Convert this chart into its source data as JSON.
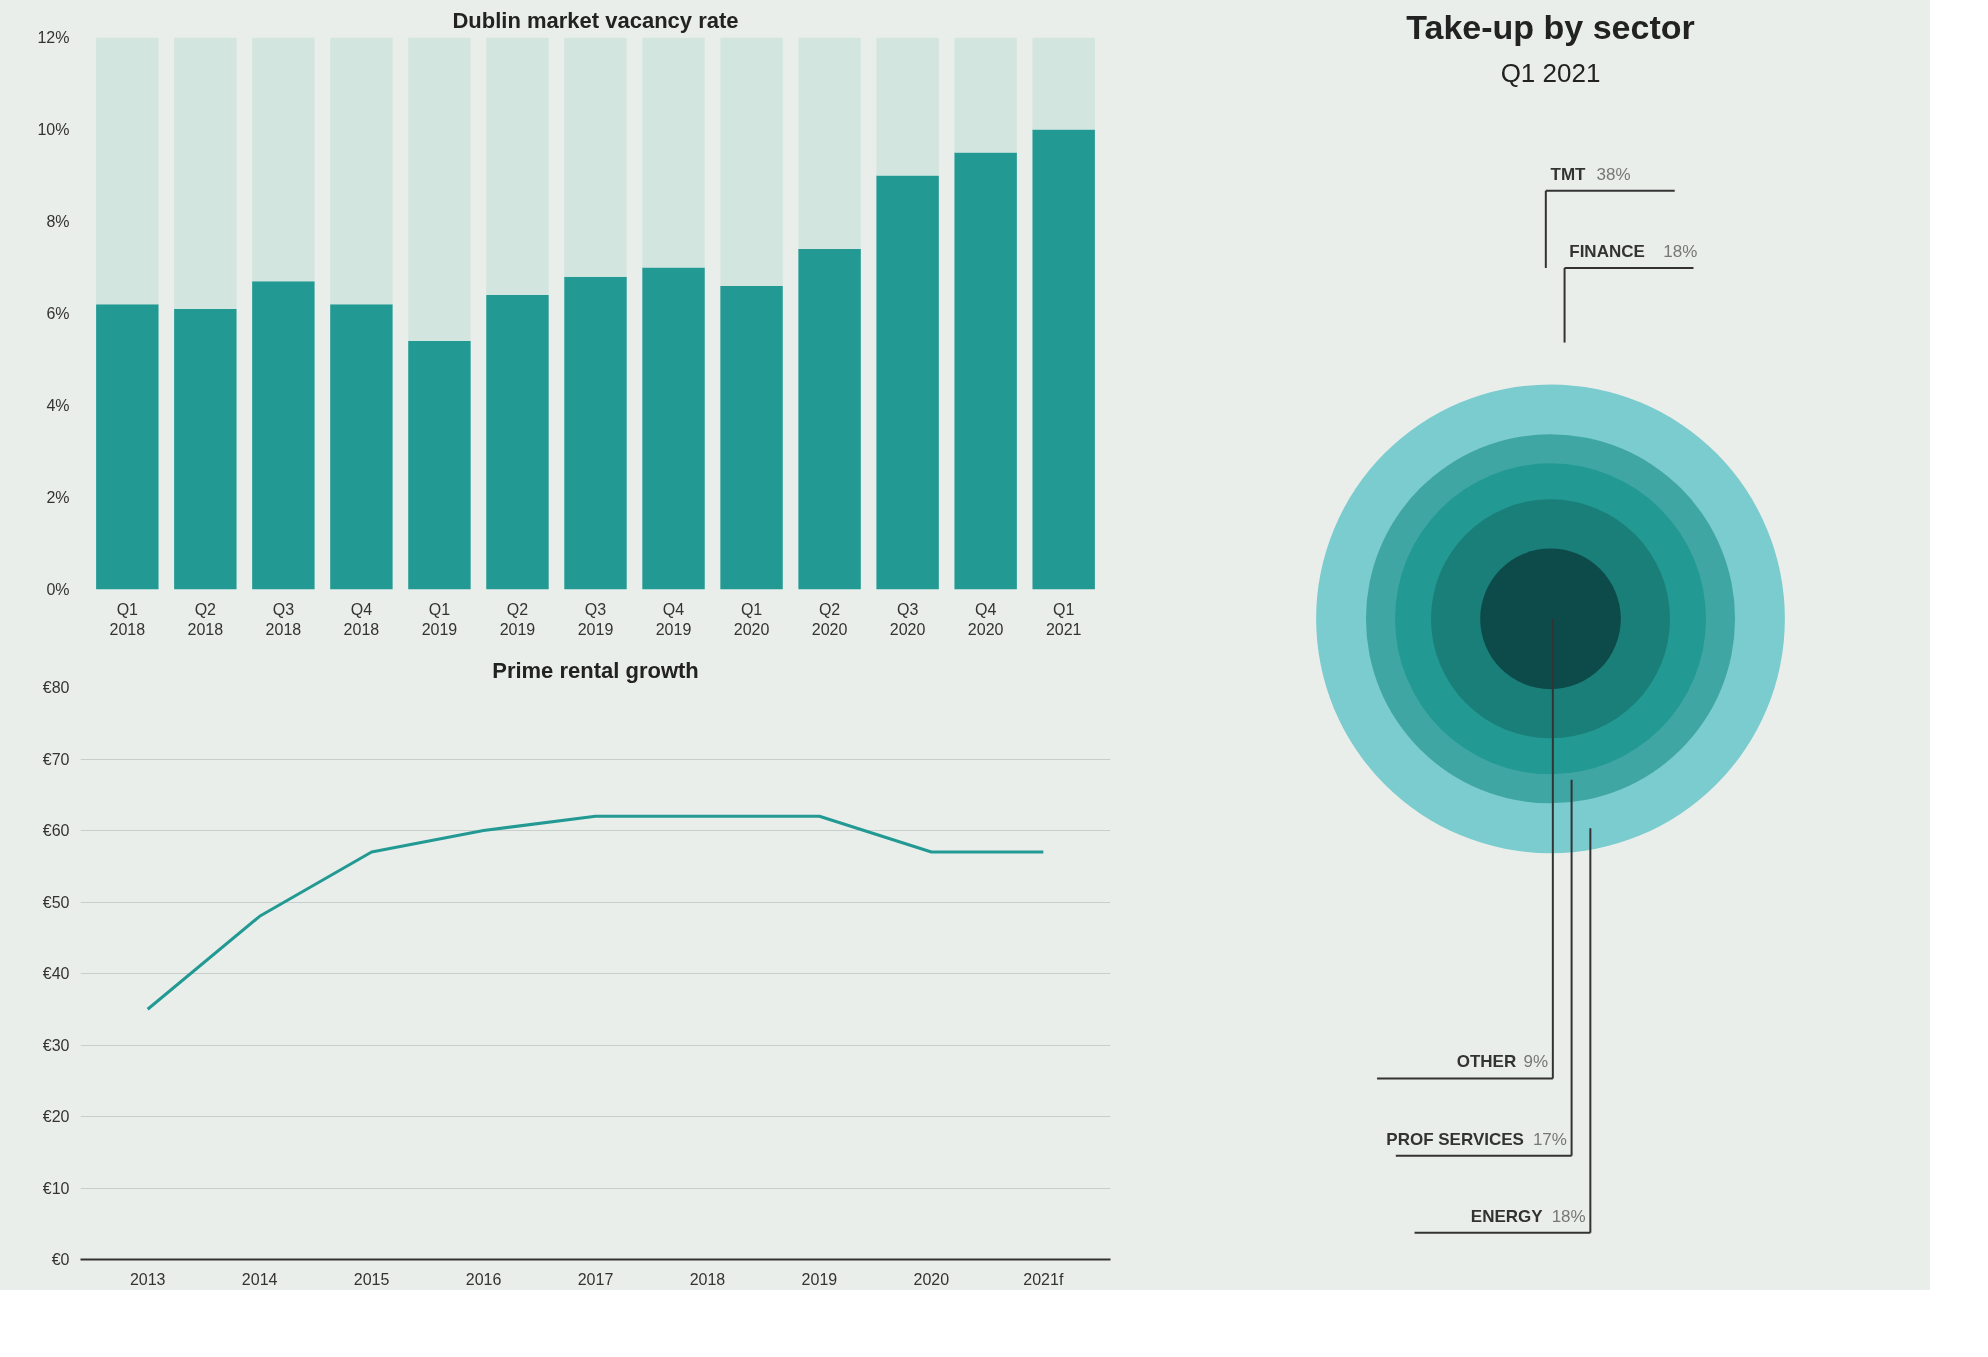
{
  "chart_data": [
    {
      "type": "bar",
      "title": "Dublin market vacancy rate",
      "stacked": true,
      "categories": [
        "Q1 2018",
        "Q2 2018",
        "Q3 2018",
        "Q4 2018",
        "Q1 2019",
        "Q2 2019",
        "Q3 2019",
        "Q4 2019",
        "Q1 2020",
        "Q2 2020",
        "Q3 2020",
        "Q4 2020",
        "Q1 2021"
      ],
      "series": [
        {
          "color": "#229a93",
          "values": [
            6.2,
            6.1,
            6.7,
            6.2,
            5.4,
            6.4,
            6.8,
            7.0,
            6.6,
            7.4,
            9.0,
            9.5,
            10.0
          ]
        },
        {
          "color": "#d3e5df",
          "values": [
            5.8,
            5.9,
            5.3,
            5.8,
            6.6,
            5.6,
            5.2,
            5.0,
            5.4,
            4.6,
            3.0,
            2.5,
            2.0
          ]
        }
      ],
      "ylim": [
        0,
        12
      ],
      "yticks": [
        {
          "value": 0,
          "label": "0%"
        },
        {
          "value": 2,
          "label": "2%"
        },
        {
          "value": 4,
          "label": "4%"
        },
        {
          "value": 6,
          "label": "6%"
        },
        {
          "value": 8,
          "label": "8%"
        },
        {
          "value": 10,
          "label": "10%"
        },
        {
          "value": 12,
          "label": "12%"
        }
      ],
      "grid": false
    },
    {
      "type": "line",
      "title": "Prime rental growth",
      "categories": [
        "2013",
        "2014",
        "2015",
        "2016",
        "2017",
        "2018",
        "2019",
        "2020",
        "2021f"
      ],
      "series": [
        {
          "color": "#229a93",
          "values": [
            35,
            48,
            57,
            60,
            62,
            62,
            62,
            57,
            57
          ]
        }
      ],
      "ylim": [
        0,
        80
      ],
      "yticks": [
        {
          "value": 0,
          "label": "€0"
        },
        {
          "value": 10,
          "label": "€10"
        },
        {
          "value": 20,
          "label": "€20"
        },
        {
          "value": 30,
          "label": "€30"
        },
        {
          "value": 40,
          "label": "€40"
        },
        {
          "value": 50,
          "label": "€50"
        },
        {
          "value": 60,
          "label": "€60"
        },
        {
          "value": 70,
          "label": "€70"
        },
        {
          "value": 80,
          "label": "€80"
        }
      ],
      "grid": "y",
      "marker": "none",
      "line_style": "solid"
    },
    {
      "type": "other",
      "title": "Take-up by sector",
      "subtitle": "Q1 2021",
      "categories": [
        "TMT",
        "FINANCE",
        "ENERGY",
        "PROF SERVICES",
        "OTHER"
      ],
      "values": [
        38,
        18,
        18,
        17,
        9
      ],
      "value_labels": [
        "38%",
        "18%",
        "18%",
        "17%",
        "9%"
      ],
      "colors": [
        "#7accce",
        "#40a6a4",
        "#229a93",
        "#1b7f79",
        "#0d4b4b"
      ]
    }
  ]
}
